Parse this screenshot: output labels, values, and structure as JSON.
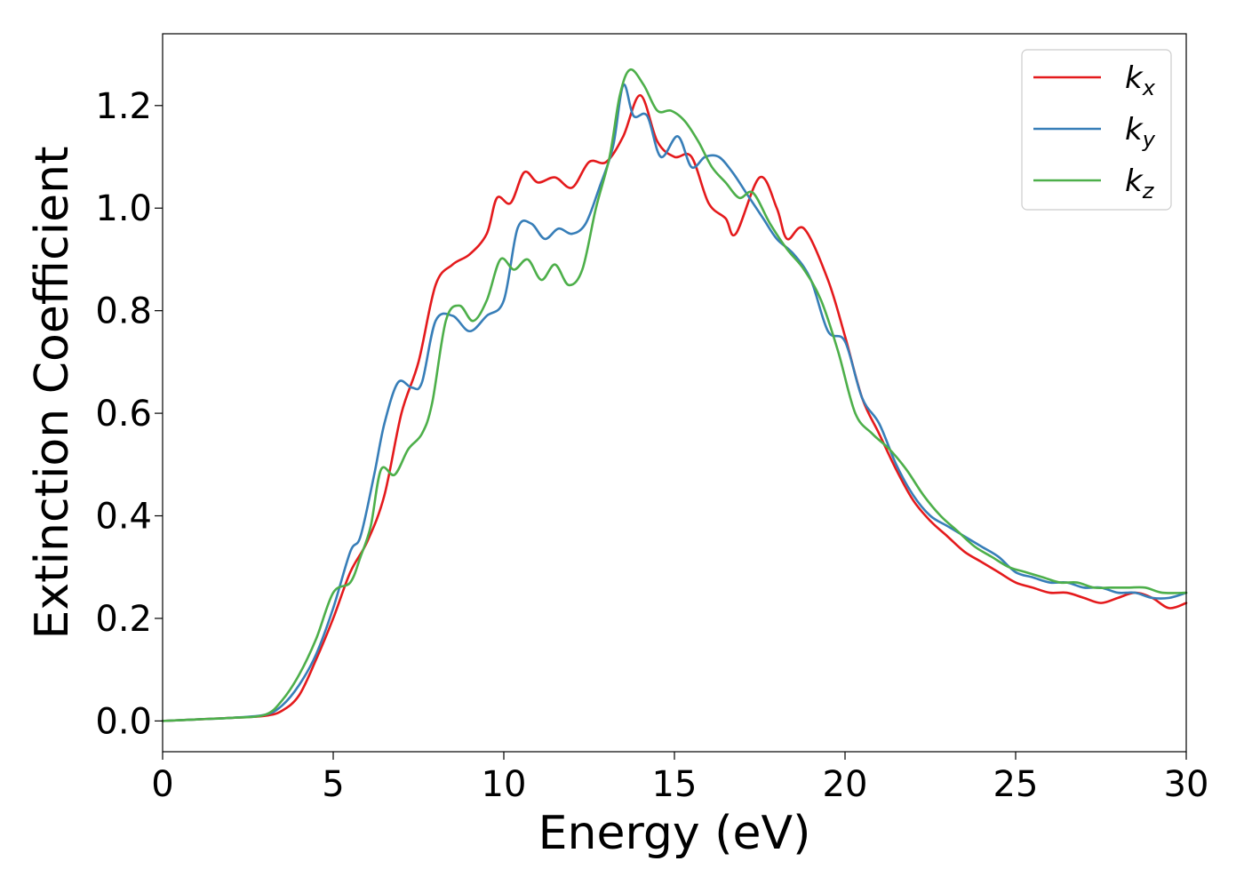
{
  "chart_data": {
    "type": "line",
    "title": "",
    "xlabel": "Energy (eV)",
    "ylabel": "Extinction Coefficient",
    "xlim": [
      0,
      30
    ],
    "ylim": [
      -0.06,
      1.34
    ],
    "xticks": [
      0,
      5,
      10,
      15,
      20,
      25,
      30
    ],
    "xtick_labels": [
      "0",
      "5",
      "10",
      "15",
      "20",
      "25",
      "30"
    ],
    "yticks": [
      0.0,
      0.2,
      0.4,
      0.6,
      0.8,
      1.0,
      1.2
    ],
    "ytick_labels": [
      "0.0",
      "0.2",
      "0.4",
      "0.6",
      "0.8",
      "1.0",
      "1.2"
    ],
    "grid": false,
    "legend_position": "top-right",
    "series": [
      {
        "name": "k",
        "subscript": "x",
        "color": "#e41a1c",
        "x": [
          0,
          1,
          2,
          3,
          3.5,
          4,
          4.5,
          5,
          5.5,
          6,
          6.5,
          7,
          7.5,
          8,
          8.5,
          9,
          9.5,
          9.8,
          10.2,
          10.6,
          11,
          11.5,
          12,
          12.5,
          13,
          13.5,
          14,
          14.5,
          15,
          15.5,
          16,
          16.5,
          16.8,
          17.5,
          18,
          18.3,
          18.8,
          19.5,
          20,
          20.5,
          21,
          21.5,
          22,
          22.5,
          23,
          23.5,
          24,
          24.5,
          25,
          25.5,
          26,
          26.5,
          27,
          27.5,
          28,
          28.5,
          29,
          29.5,
          30
        ],
        "y": [
          0.0,
          0.003,
          0.006,
          0.01,
          0.02,
          0.05,
          0.12,
          0.2,
          0.29,
          0.35,
          0.44,
          0.6,
          0.7,
          0.85,
          0.89,
          0.91,
          0.95,
          1.02,
          1.01,
          1.07,
          1.05,
          1.06,
          1.04,
          1.09,
          1.09,
          1.14,
          1.22,
          1.13,
          1.1,
          1.1,
          1.01,
          0.98,
          0.95,
          1.06,
          1.0,
          0.94,
          0.96,
          0.86,
          0.75,
          0.63,
          0.56,
          0.49,
          0.43,
          0.39,
          0.36,
          0.33,
          0.31,
          0.29,
          0.27,
          0.26,
          0.25,
          0.25,
          0.24,
          0.23,
          0.24,
          0.25,
          0.24,
          0.22,
          0.23
        ]
      },
      {
        "name": "k",
        "subscript": "y",
        "color": "#377eb8",
        "x": [
          0,
          1,
          2,
          3,
          3.5,
          4,
          4.5,
          5,
          5.5,
          5.8,
          6.2,
          6.5,
          6.9,
          7.3,
          7.6,
          8,
          8.5,
          9,
          9.5,
          10,
          10.4,
          10.8,
          11.2,
          11.6,
          12,
          12.4,
          12.8,
          13.2,
          13.5,
          13.8,
          14.2,
          14.6,
          15.1,
          15.5,
          15.9,
          16.3,
          16.7,
          17.1,
          17.6,
          18,
          18.5,
          19,
          19.5,
          20,
          20.5,
          21,
          21.5,
          22,
          22.5,
          23,
          23.5,
          24,
          24.5,
          25,
          25.5,
          26,
          26.5,
          27,
          27.5,
          28,
          28.5,
          29,
          29.5,
          30
        ],
        "y": [
          0.0,
          0.003,
          0.006,
          0.012,
          0.03,
          0.07,
          0.13,
          0.22,
          0.33,
          0.36,
          0.48,
          0.58,
          0.66,
          0.65,
          0.66,
          0.78,
          0.79,
          0.76,
          0.79,
          0.82,
          0.96,
          0.97,
          0.94,
          0.96,
          0.95,
          0.97,
          1.04,
          1.12,
          1.24,
          1.18,
          1.18,
          1.1,
          1.14,
          1.08,
          1.1,
          1.1,
          1.07,
          1.03,
          0.98,
          0.94,
          0.91,
          0.86,
          0.76,
          0.74,
          0.63,
          0.58,
          0.5,
          0.44,
          0.4,
          0.38,
          0.36,
          0.34,
          0.32,
          0.29,
          0.28,
          0.27,
          0.27,
          0.26,
          0.26,
          0.25,
          0.25,
          0.24,
          0.24,
          0.25
        ]
      },
      {
        "name": "k",
        "subscript": "z",
        "color": "#4daf4a",
        "x": [
          0,
          1,
          2,
          3,
          3.5,
          4,
          4.5,
          5,
          5.5,
          5.8,
          6.1,
          6.4,
          6.8,
          7.2,
          7.6,
          7.9,
          8.3,
          8.7,
          9.1,
          9.5,
          9.9,
          10.3,
          10.7,
          11.1,
          11.5,
          11.9,
          12.3,
          12.7,
          13.1,
          13.4,
          13.7,
          14.1,
          14.5,
          14.9,
          15.3,
          15.7,
          16.1,
          16.5,
          16.9,
          17.3,
          17.8,
          18.3,
          18.8,
          19.3,
          19.8,
          20.3,
          20.8,
          21.3,
          21.8,
          22.3,
          22.8,
          23.3,
          23.8,
          24.3,
          24.8,
          25.3,
          25.8,
          26.3,
          26.8,
          27.3,
          27.8,
          28.3,
          28.8,
          29.3,
          30
        ],
        "y": [
          0.0,
          0.003,
          0.006,
          0.012,
          0.04,
          0.09,
          0.16,
          0.25,
          0.27,
          0.32,
          0.38,
          0.49,
          0.48,
          0.53,
          0.56,
          0.62,
          0.78,
          0.81,
          0.78,
          0.82,
          0.9,
          0.88,
          0.9,
          0.86,
          0.89,
          0.85,
          0.88,
          1.0,
          1.1,
          1.22,
          1.27,
          1.24,
          1.19,
          1.19,
          1.17,
          1.13,
          1.08,
          1.05,
          1.02,
          1.03,
          0.97,
          0.92,
          0.88,
          0.82,
          0.72,
          0.6,
          0.56,
          0.53,
          0.49,
          0.44,
          0.4,
          0.37,
          0.34,
          0.32,
          0.3,
          0.29,
          0.28,
          0.27,
          0.27,
          0.26,
          0.26,
          0.26,
          0.26,
          0.25,
          0.25
        ]
      }
    ]
  }
}
